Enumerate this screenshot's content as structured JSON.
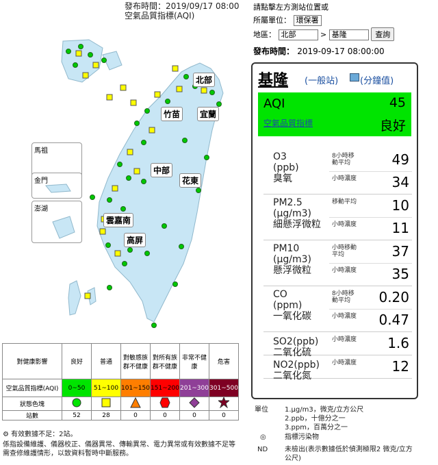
{
  "header": {
    "publish_time_line": "發布時間：2019/09/17 08:00",
    "index_name": "空氣品質指標(AQI)"
  },
  "controls": {
    "hint": "請點擊左方測站位置或",
    "unit_label": "所屬單位：",
    "unit_value": "環保署",
    "area_label": "地區：",
    "area_value": "北部",
    "station_value": "基隆",
    "query_button": "查詢",
    "publish_label": "發布時間：",
    "publish_value": "2019-09-17 08:00:00"
  },
  "map": {
    "insets": [
      "馬祖",
      "金門",
      "澎湖"
    ],
    "regions": [
      "北部",
      "竹苗",
      "宜蘭",
      "中部",
      "花東",
      "雲嘉南",
      "高屏"
    ]
  },
  "station": {
    "name": "基隆",
    "type_link": "(一般站)",
    "minute_link": "(分鐘值)",
    "aqi_label": "AQI",
    "aqi_value": "45",
    "aqi_link": "空氣品質指標",
    "aqi_status": "良好",
    "aqi_color": "#00e400",
    "pollutants": [
      {
        "name": "O3",
        "unit": "(ppb)",
        "cname": "臭氧",
        "rows": [
          {
            "label": "8小時移動平均",
            "value": "49"
          },
          {
            "label": "小時濃度",
            "value": "34"
          }
        ]
      },
      {
        "name": "PM2.5",
        "unit": "(μg/m3)",
        "cname": "細懸浮微粒",
        "rows": [
          {
            "label": "移動平均",
            "value": "10"
          },
          {
            "label": "小時濃度",
            "value": "11"
          }
        ]
      },
      {
        "name": "PM10",
        "unit": "(μg/m3)",
        "cname": "懸浮微粒",
        "rows": [
          {
            "label": "小時移動平均",
            "value": "37"
          },
          {
            "label": "小時濃度",
            "value": "35"
          }
        ]
      },
      {
        "name": "CO",
        "unit": "(ppm)",
        "cname": "一氧化碳",
        "rows": [
          {
            "label": "8小時移動平均",
            "value": "0.20"
          },
          {
            "label": "小時濃度",
            "value": "0.47"
          }
        ]
      },
      {
        "name": "SO2(ppb)",
        "unit": "",
        "cname": "二氧化硫",
        "rows": [
          {
            "label": "小時濃度",
            "value": "1.6"
          }
        ]
      },
      {
        "name": "NO2(ppb)",
        "unit": "",
        "cname": "二氧化氮",
        "rows": [
          {
            "label": "小時濃度",
            "value": "12"
          }
        ]
      }
    ]
  },
  "legend": {
    "head_label": "對健康影響",
    "ranges_label": "空氣品質指標(AQI)",
    "symbol_label": "狀態色塊",
    "count_label": "站數",
    "levels": [
      {
        "name": "良好",
        "range": "0~50",
        "color": "#00e400",
        "count": "52",
        "icon": "circle-icon"
      },
      {
        "name": "普通",
        "range": "51~100",
        "color": "#ffff00",
        "count": "28",
        "icon": "square-icon"
      },
      {
        "name": "對敏感族群不健康",
        "range": "101~150",
        "color": "#ff7e00",
        "count": "0",
        "icon": "triangle-icon"
      },
      {
        "name": "對所有族群不健康",
        "range": "151~200",
        "color": "#ff0000",
        "count": "0",
        "icon": "hexagon-icon"
      },
      {
        "name": "非常不健康",
        "range": "201~300",
        "color": "#8f3f97",
        "count": "0",
        "icon": "diamond-icon"
      },
      {
        "name": "危害",
        "range": "301~500",
        "color": "#7e0023",
        "count": "0",
        "icon": "star-icon"
      }
    ],
    "insufficient_note": "有效數據不足：2站。",
    "maintenance_note": "係指設備維護、儀器校正、儀器異常、傳輸異常、電力異常或有效數據不足等需查修維護情形，以致資料暫時中斷服務。"
  },
  "notes": {
    "unit_label": "單位",
    "units": [
      "1.μg/m3，微克/立方公尺",
      "2.ppb，十億分之一",
      "3.ppm，百萬分之一"
    ],
    "marker_symbol": "◎",
    "marker_text": "指標污染物",
    "nd_label": "ND",
    "nd_text": "未檢出(表示數據低於偵測極限2 微克/立方公尺)"
  }
}
